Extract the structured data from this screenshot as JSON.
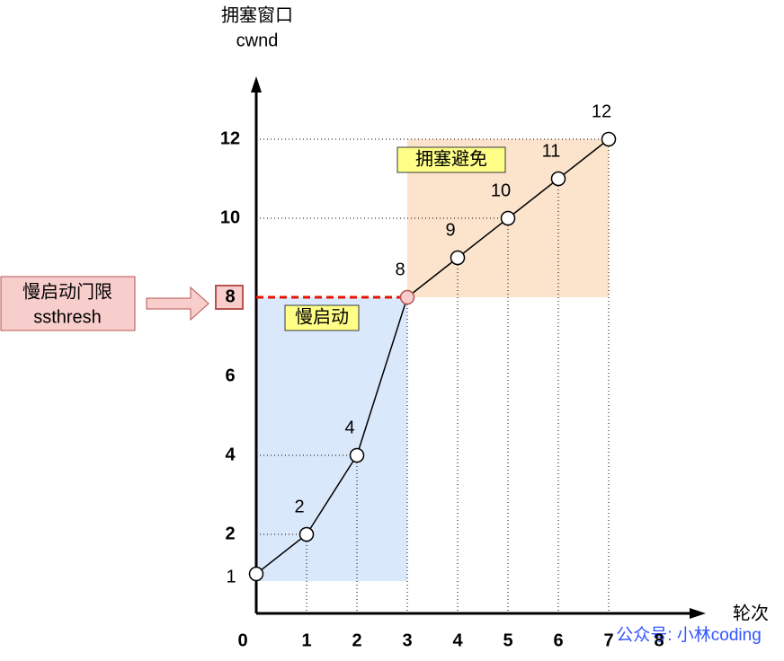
{
  "chart_data": {
    "type": "line",
    "y_title": "拥塞窗口",
    "y_title_2": "cwnd",
    "x_title": "轮次",
    "x": [
      0,
      1,
      2,
      3,
      4,
      5,
      6,
      7
    ],
    "series": [
      {
        "values": [
          1,
          2,
          4,
          8,
          9,
          10,
          11,
          12
        ],
        "color": "#000000"
      }
    ],
    "xlim": [
      0,
      8.5
    ],
    "xticks": [
      0,
      1,
      2,
      3,
      4,
      5,
      6,
      7,
      8
    ],
    "ylim": [
      0,
      13.5
    ],
    "yticks": [
      2,
      4,
      6,
      8,
      10,
      12
    ],
    "ssthresh": 8,
    "ssthresh_color": "#e51400",
    "ssthresh_point_color": "#f8cecc",
    "slow_start_label": "慢启动",
    "slow_start_color": "#dae8fc",
    "avoidance_label": "拥塞避免",
    "avoidance_color": "#fbe3cc",
    "ssthresh_box_title": "慢启动门限",
    "ssthresh_box_name": "ssthresh",
    "watermark": "公众号: 小林coding"
  }
}
